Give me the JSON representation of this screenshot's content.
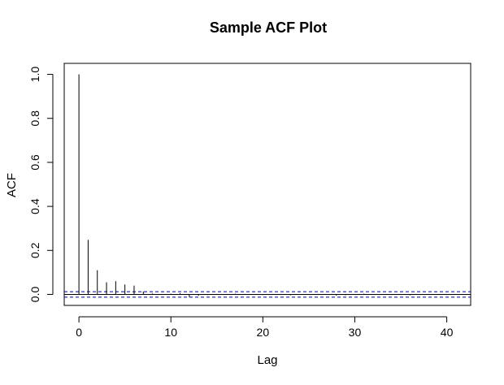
{
  "chart_data": {
    "type": "bar",
    "title": "Sample ACF Plot",
    "xlabel": "Lag",
    "ylabel": "ACF",
    "xlim": [
      -1.6,
      42.6
    ],
    "ylim": [
      -0.05,
      1.05
    ],
    "x_ticks": [
      0,
      10,
      20,
      30,
      40
    ],
    "y_ticks": [
      0.0,
      0.2,
      0.4,
      0.6,
      0.8,
      1.0
    ],
    "x_tick_labels": [
      "0",
      "10",
      "20",
      "30",
      "40"
    ],
    "y_tick_labels": [
      "0.0",
      "0.2",
      "0.4",
      "0.6",
      "0.8",
      "1.0"
    ],
    "lags": [
      0,
      1,
      2,
      3,
      4,
      5,
      6,
      7,
      8,
      9,
      10,
      11,
      12,
      13,
      14,
      15,
      16,
      17,
      18,
      19,
      20,
      21,
      22,
      23,
      24,
      25,
      26,
      27,
      28,
      29,
      30,
      31,
      32,
      33,
      34,
      35,
      36,
      37,
      38,
      39,
      40
    ],
    "values": [
      1.0,
      0.248,
      0.11,
      0.055,
      0.06,
      0.045,
      0.04,
      0.013,
      0.004,
      0.002,
      0.003,
      0.005,
      -0.012,
      -0.006,
      -0.003,
      0.002,
      0.001,
      0.003,
      0.002,
      -0.002,
      -0.003,
      0.001,
      0.002,
      -0.004,
      -0.002,
      0.001,
      0.002,
      -0.001,
      -0.006,
      -0.004,
      0.001,
      0.003,
      0.001,
      -0.002,
      -0.003,
      0.002,
      -0.004,
      0.001,
      0.002,
      -0.001,
      0.002
    ],
    "confidence_bound": 0.0125,
    "zero_line": true,
    "grid": false,
    "colors": {
      "bars": "#000000",
      "zero_line": "#000000",
      "confidence_lines": "#00008B",
      "axes": "#000000"
    }
  }
}
